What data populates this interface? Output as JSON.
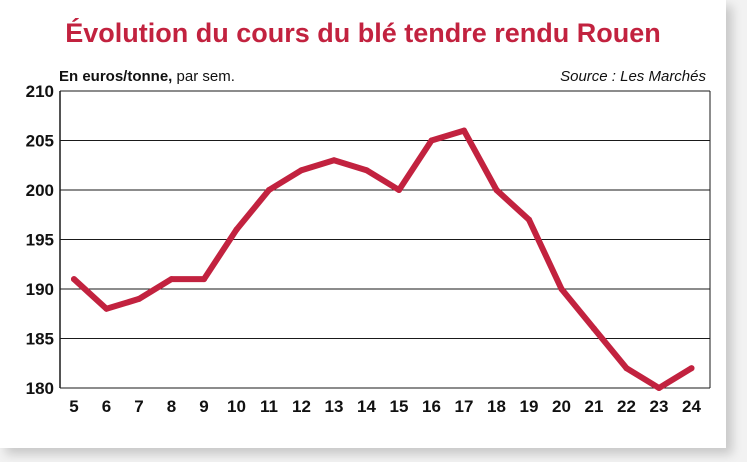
{
  "chart_data": {
    "type": "line",
    "title": "Évolution du cours du blé tendre rendu Rouen",
    "unit_bold": "En euros/tonne,",
    "unit_rest": " par sem.",
    "source": "Source : Les Marchés",
    "xlabel": "",
    "ylabel": "",
    "x": [
      5,
      6,
      7,
      8,
      9,
      10,
      11,
      12,
      13,
      14,
      15,
      16,
      17,
      18,
      19,
      20,
      21,
      22,
      23,
      24
    ],
    "series": [
      {
        "values": [
          191,
          188,
          189,
          191,
          191,
          196,
          200,
          202,
          203,
          202,
          200,
          205,
          206,
          200,
          197,
          190,
          186,
          182,
          180,
          182
        ]
      }
    ],
    "ylim": [
      180,
      210
    ],
    "yticks": [
      180,
      185,
      190,
      195,
      200,
      205,
      210
    ],
    "grid": true,
    "line_color": "#c2223f"
  }
}
